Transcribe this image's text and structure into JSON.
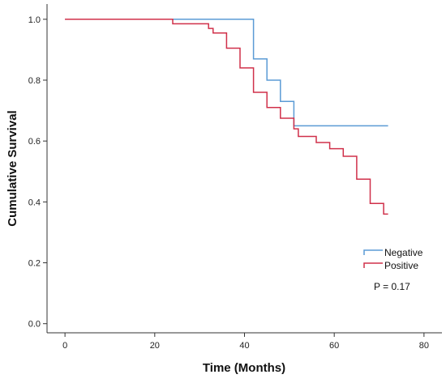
{
  "chart_data": {
    "type": "line",
    "title": "",
    "xlabel": "Time (Months)",
    "ylabel": "Cumulative Survival",
    "xlim": [
      -4,
      84
    ],
    "ylim": [
      -0.03,
      1.05
    ],
    "x_ticks": [
      0,
      20,
      40,
      60,
      80
    ],
    "y_ticks": [
      0.0,
      0.2,
      0.4,
      0.6,
      0.8,
      1.0
    ],
    "x_tick_labels": [
      "0",
      "20",
      "40",
      "60",
      "80"
    ],
    "y_tick_labels": [
      "0.0",
      "0.2",
      "0.4",
      "0.6",
      "0.8",
      "1.0"
    ],
    "grid": false,
    "legend_position": "right",
    "series": [
      {
        "name": "Negative",
        "color": "#5b9bd5",
        "steps": [
          [
            0,
            1.0
          ],
          [
            42,
            0.87
          ],
          [
            45,
            0.8
          ],
          [
            48,
            0.73
          ],
          [
            51,
            0.65
          ],
          [
            72,
            0.65
          ]
        ]
      },
      {
        "name": "Positive",
        "color": "#d0304a",
        "steps": [
          [
            0,
            1.0
          ],
          [
            24,
            0.985
          ],
          [
            32,
            0.97
          ],
          [
            33,
            0.955
          ],
          [
            36,
            0.905
          ],
          [
            39,
            0.84
          ],
          [
            42,
            0.76
          ],
          [
            45,
            0.71
          ],
          [
            48,
            0.675
          ],
          [
            51,
            0.64
          ],
          [
            52,
            0.615
          ],
          [
            56,
            0.595
          ],
          [
            59,
            0.575
          ],
          [
            62,
            0.55
          ],
          [
            65,
            0.475
          ],
          [
            68,
            0.395
          ],
          [
            71,
            0.36
          ],
          [
            72,
            0.36
          ]
        ]
      }
    ],
    "annotations": [
      {
        "text": "P = 0.17"
      }
    ]
  }
}
